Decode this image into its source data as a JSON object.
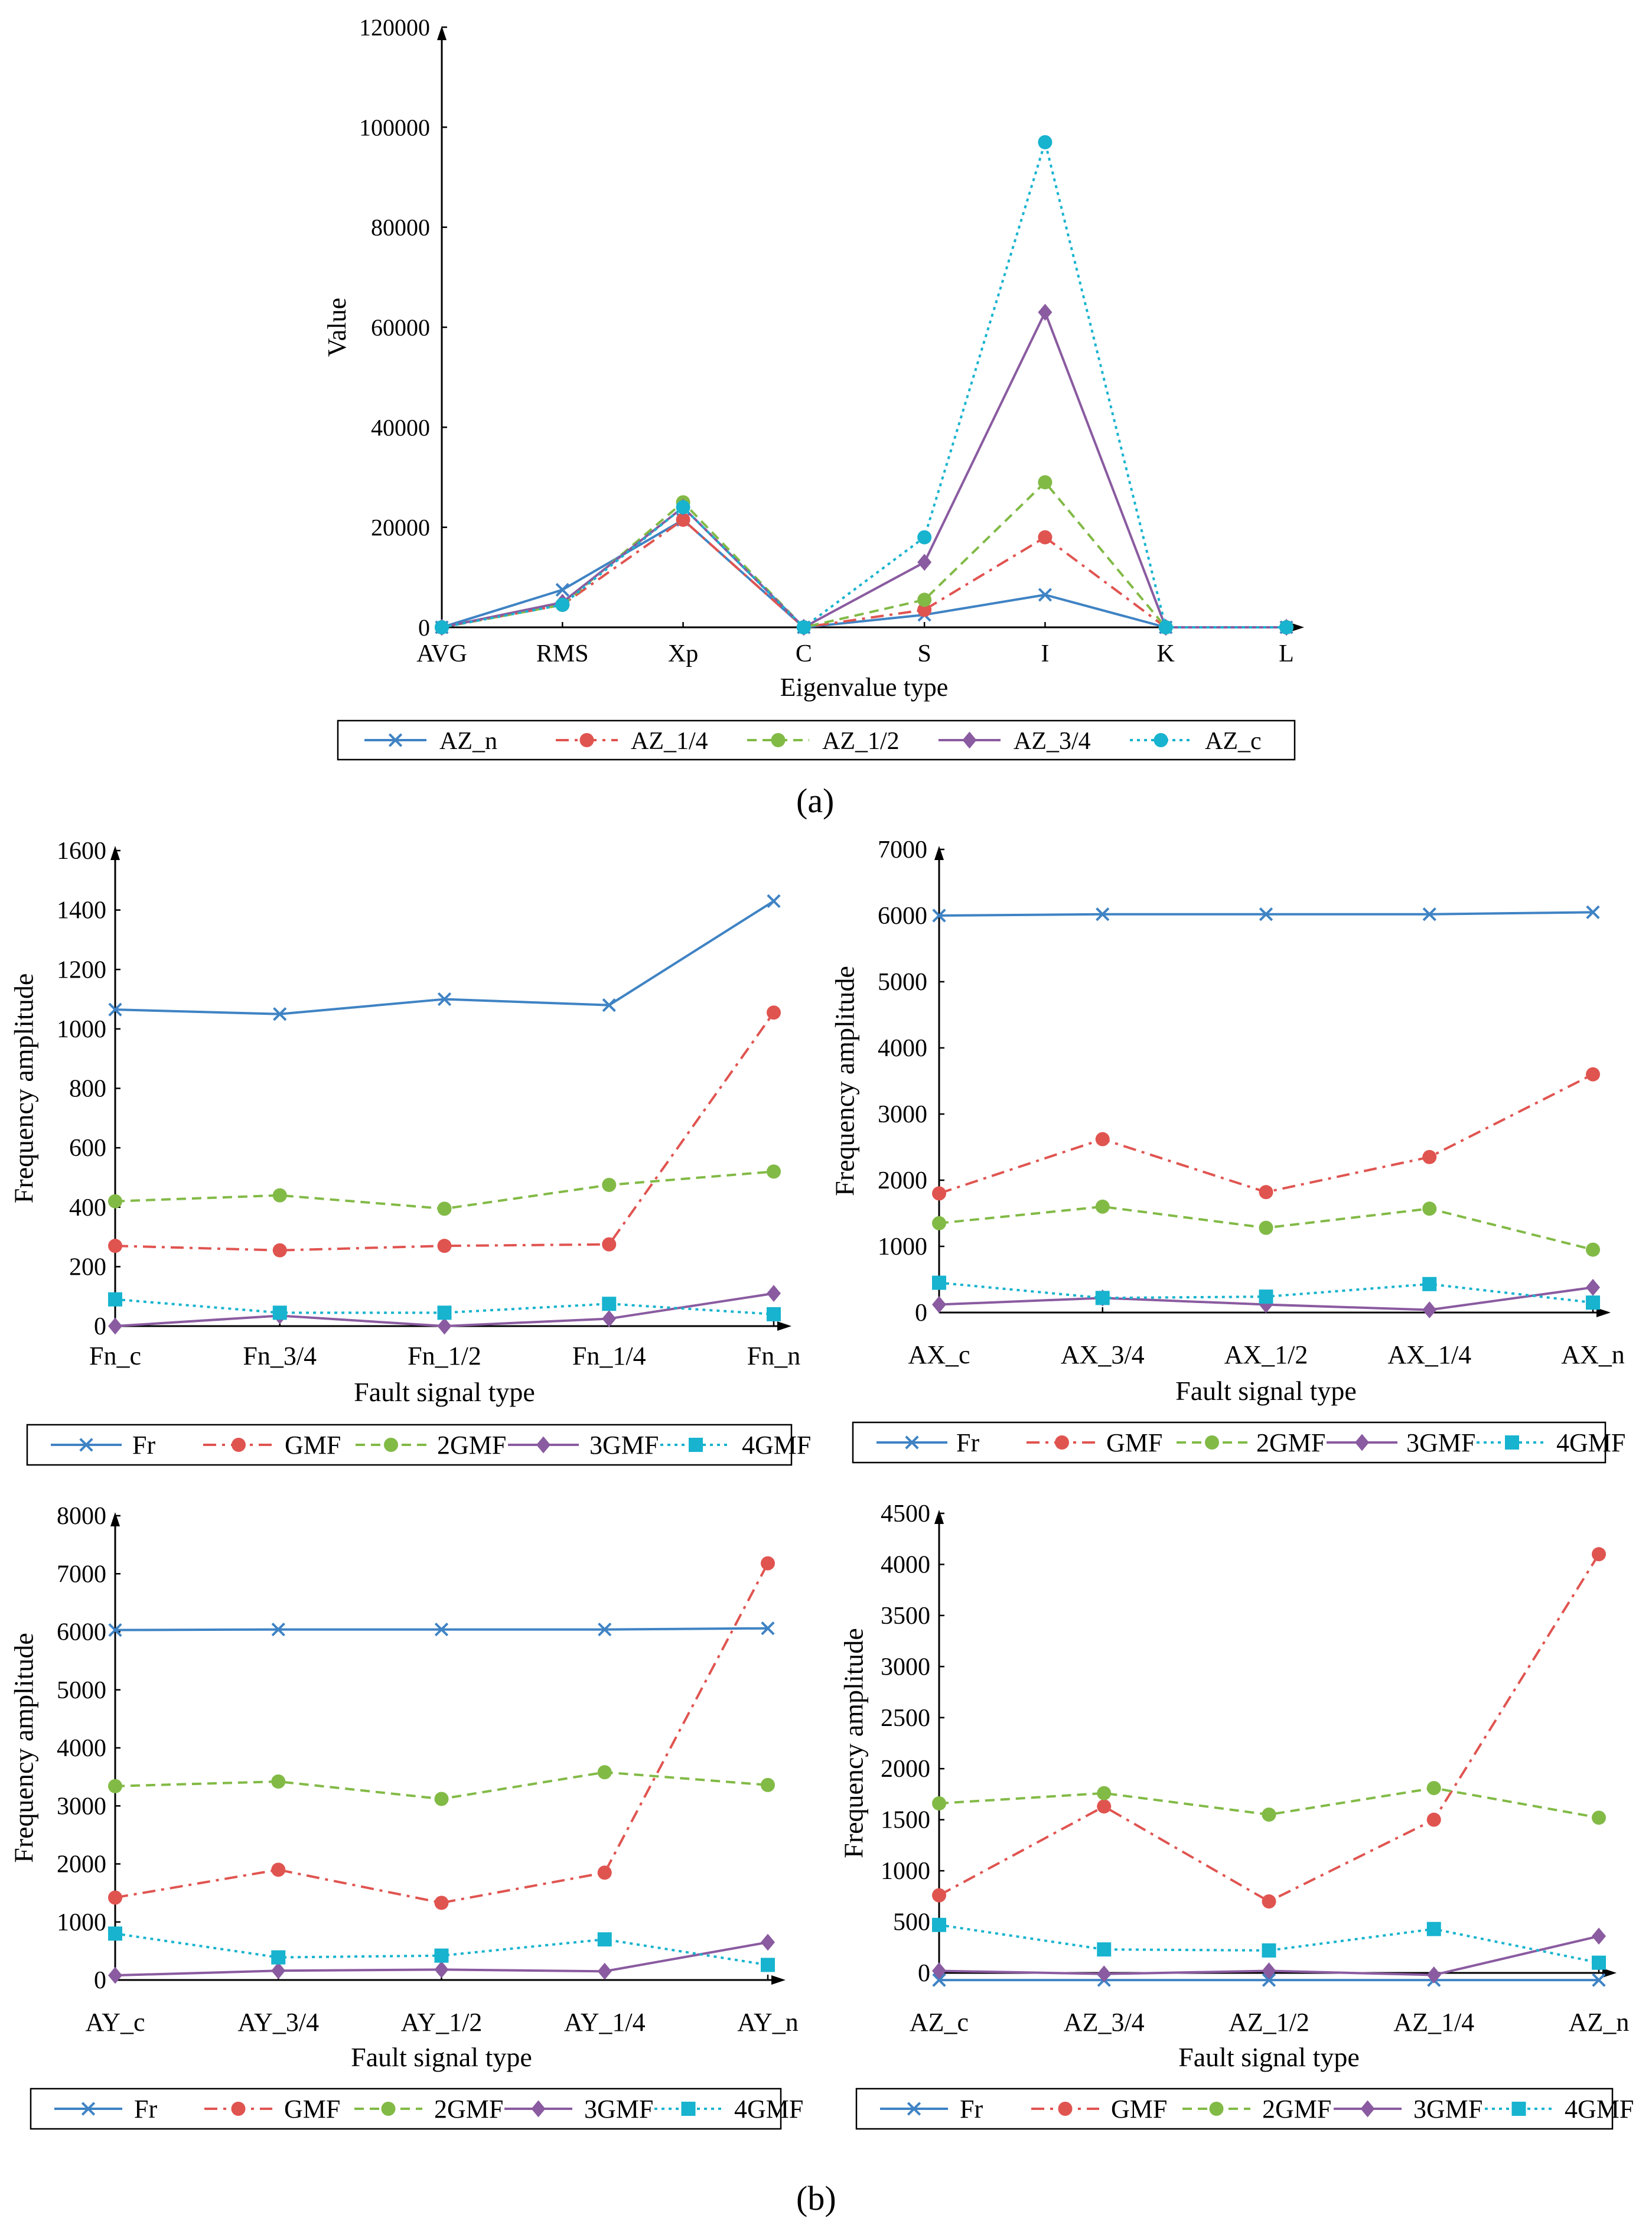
{
  "figure": {
    "label_a": "(a)",
    "label_b": "(b)"
  },
  "chart_data": [
    {
      "id": "a",
      "type": "line",
      "title": "",
      "xlabel": "Eigenvalue type",
      "ylabel": "Value",
      "categories": [
        "AVG",
        "RMS",
        "Xp",
        "C",
        "S",
        "I",
        "K",
        "L"
      ],
      "ylim": [
        0,
        120000
      ],
      "yticks": [
        0,
        20000,
        40000,
        60000,
        80000,
        100000,
        120000
      ],
      "legend_position": "bottom",
      "series": [
        {
          "name": "AZ_n",
          "color": "#3f83c4",
          "dash": "solid",
          "marker": "x",
          "values": [
            0,
            7500,
            21500,
            0,
            2500,
            6500,
            0,
            0
          ]
        },
        {
          "name": "AZ_1/4",
          "color": "#e05450",
          "dash": "dashdot",
          "marker": "circle",
          "values": [
            0,
            4500,
            21500,
            0,
            3500,
            18000,
            0,
            0
          ]
        },
        {
          "name": "AZ_1/2",
          "color": "#82ba46",
          "dash": "dash",
          "marker": "circle",
          "values": [
            0,
            4500,
            25000,
            0,
            5500,
            29000,
            0,
            0
          ]
        },
        {
          "name": "AZ_3/4",
          "color": "#8a5ba0",
          "dash": "solid",
          "marker": "diamond",
          "values": [
            0,
            5000,
            24000,
            0,
            13000,
            63000,
            0,
            0
          ]
        },
        {
          "name": "AZ_c",
          "color": "#17b3cf",
          "dash": "dot",
          "marker": "circle",
          "values": [
            0,
            4500,
            24000,
            0,
            18000,
            97000,
            0,
            0
          ]
        }
      ]
    },
    {
      "id": "b1",
      "type": "line",
      "title": "",
      "xlabel": "Fault signal type",
      "ylabel": "Frequency amplitude",
      "categories": [
        "Fn_c",
        "Fn_3/4",
        "Fn_1/2",
        "Fn_1/4",
        "Fn_n"
      ],
      "ylim": [
        0,
        1600
      ],
      "yticks": [
        0,
        200,
        400,
        600,
        800,
        1000,
        1200,
        1400,
        1600
      ],
      "legend_position": "bottom",
      "series": [
        {
          "name": "Fr",
          "color": "#3f83c4",
          "dash": "solid",
          "marker": "x",
          "values": [
            1065,
            1050,
            1100,
            1080,
            1430
          ]
        },
        {
          "name": "GMF",
          "color": "#e05450",
          "dash": "dashdot",
          "marker": "circle",
          "values": [
            270,
            255,
            270,
            275,
            1055
          ]
        },
        {
          "name": "2GMF",
          "color": "#82ba46",
          "dash": "dash",
          "marker": "circle",
          "values": [
            420,
            440,
            395,
            475,
            520
          ]
        },
        {
          "name": "3GMF",
          "color": "#8a5ba0",
          "dash": "solid",
          "marker": "diamond",
          "values": [
            0,
            35,
            0,
            25,
            110
          ]
        },
        {
          "name": "4GMF",
          "color": "#17b3cf",
          "dash": "dot",
          "marker": "square",
          "values": [
            90,
            45,
            45,
            75,
            40
          ]
        }
      ]
    },
    {
      "id": "b2",
      "type": "line",
      "title": "",
      "xlabel": "Fault signal type",
      "ylabel": "Frequency amplitude",
      "categories": [
        "AX_c",
        "AX_3/4",
        "AX_1/2",
        "AX_1/4",
        "AX_n"
      ],
      "ylim": [
        0,
        7000
      ],
      "yticks": [
        0,
        1000,
        2000,
        3000,
        4000,
        5000,
        6000,
        7000
      ],
      "legend_position": "bottom",
      "series": [
        {
          "name": "Fr",
          "color": "#3f83c4",
          "dash": "solid",
          "marker": "x",
          "values": [
            6000,
            6020,
            6020,
            6020,
            6050
          ]
        },
        {
          "name": "GMF",
          "color": "#e05450",
          "dash": "dashdot",
          "marker": "circle",
          "values": [
            1800,
            2620,
            1820,
            2350,
            3600
          ]
        },
        {
          "name": "2GMF",
          "color": "#82ba46",
          "dash": "dash",
          "marker": "circle",
          "values": [
            1350,
            1600,
            1280,
            1570,
            950
          ]
        },
        {
          "name": "3GMF",
          "color": "#8a5ba0",
          "dash": "solid",
          "marker": "diamond",
          "values": [
            120,
            220,
            120,
            40,
            380
          ]
        },
        {
          "name": "4GMF",
          "color": "#17b3cf",
          "dash": "dot",
          "marker": "square",
          "values": [
            450,
            220,
            240,
            430,
            150
          ]
        }
      ]
    },
    {
      "id": "b3",
      "type": "line",
      "title": "",
      "xlabel": "Fault signal type",
      "ylabel": "Frequency amplitude",
      "categories": [
        "AY_c",
        "AY_3/4",
        "AY_1/2",
        "AY_1/4",
        "AY_n"
      ],
      "ylim": [
        0,
        8000
      ],
      "yticks": [
        0,
        1000,
        2000,
        3000,
        4000,
        5000,
        6000,
        7000,
        8000
      ],
      "legend_position": "bottom",
      "series": [
        {
          "name": "Fr",
          "color": "#3f83c4",
          "dash": "solid",
          "marker": "x",
          "values": [
            6030,
            6040,
            6040,
            6040,
            6060
          ]
        },
        {
          "name": "GMF",
          "color": "#e05450",
          "dash": "dashdot",
          "marker": "circle",
          "values": [
            1420,
            1900,
            1330,
            1850,
            7180
          ]
        },
        {
          "name": "2GMF",
          "color": "#82ba46",
          "dash": "dash",
          "marker": "circle",
          "values": [
            3340,
            3420,
            3120,
            3580,
            3360
          ]
        },
        {
          "name": "3GMF",
          "color": "#8a5ba0",
          "dash": "solid",
          "marker": "diamond",
          "values": [
            80,
            160,
            180,
            150,
            650
          ]
        },
        {
          "name": "4GMF",
          "color": "#17b3cf",
          "dash": "dot",
          "marker": "square",
          "values": [
            800,
            390,
            420,
            700,
            260
          ]
        }
      ]
    },
    {
      "id": "b4",
      "type": "line",
      "title": "",
      "xlabel": "Fault signal type",
      "ylabel": "Frequency amplitude",
      "categories": [
        "AZ_c",
        "AZ_3/4",
        "AZ_1/2",
        "AZ_1/4",
        "AZ_n"
      ],
      "ylim": [
        0,
        4500
      ],
      "yticks": [
        0,
        500,
        1000,
        1500,
        2000,
        2500,
        3000,
        3500,
        4000,
        4500
      ],
      "legend_position": "bottom",
      "series": [
        {
          "name": "Fr",
          "color": "#3f83c4",
          "dash": "solid",
          "marker": "x",
          "values": [
            -70,
            -70,
            -70,
            -70,
            -70
          ]
        },
        {
          "name": "GMF",
          "color": "#e05450",
          "dash": "dashdot",
          "marker": "circle",
          "values": [
            760,
            1630,
            700,
            1500,
            4100
          ]
        },
        {
          "name": "2GMF",
          "color": "#82ba46",
          "dash": "dash",
          "marker": "circle",
          "values": [
            1660,
            1760,
            1550,
            1810,
            1520
          ]
        },
        {
          "name": "3GMF",
          "color": "#8a5ba0",
          "dash": "solid",
          "marker": "diamond",
          "values": [
            20,
            -10,
            20,
            -20,
            360
          ]
        },
        {
          "name": "4GMF",
          "color": "#17b3cf",
          "dash": "dot",
          "marker": "square",
          "values": [
            470,
            230,
            220,
            430,
            100
          ]
        }
      ]
    }
  ]
}
